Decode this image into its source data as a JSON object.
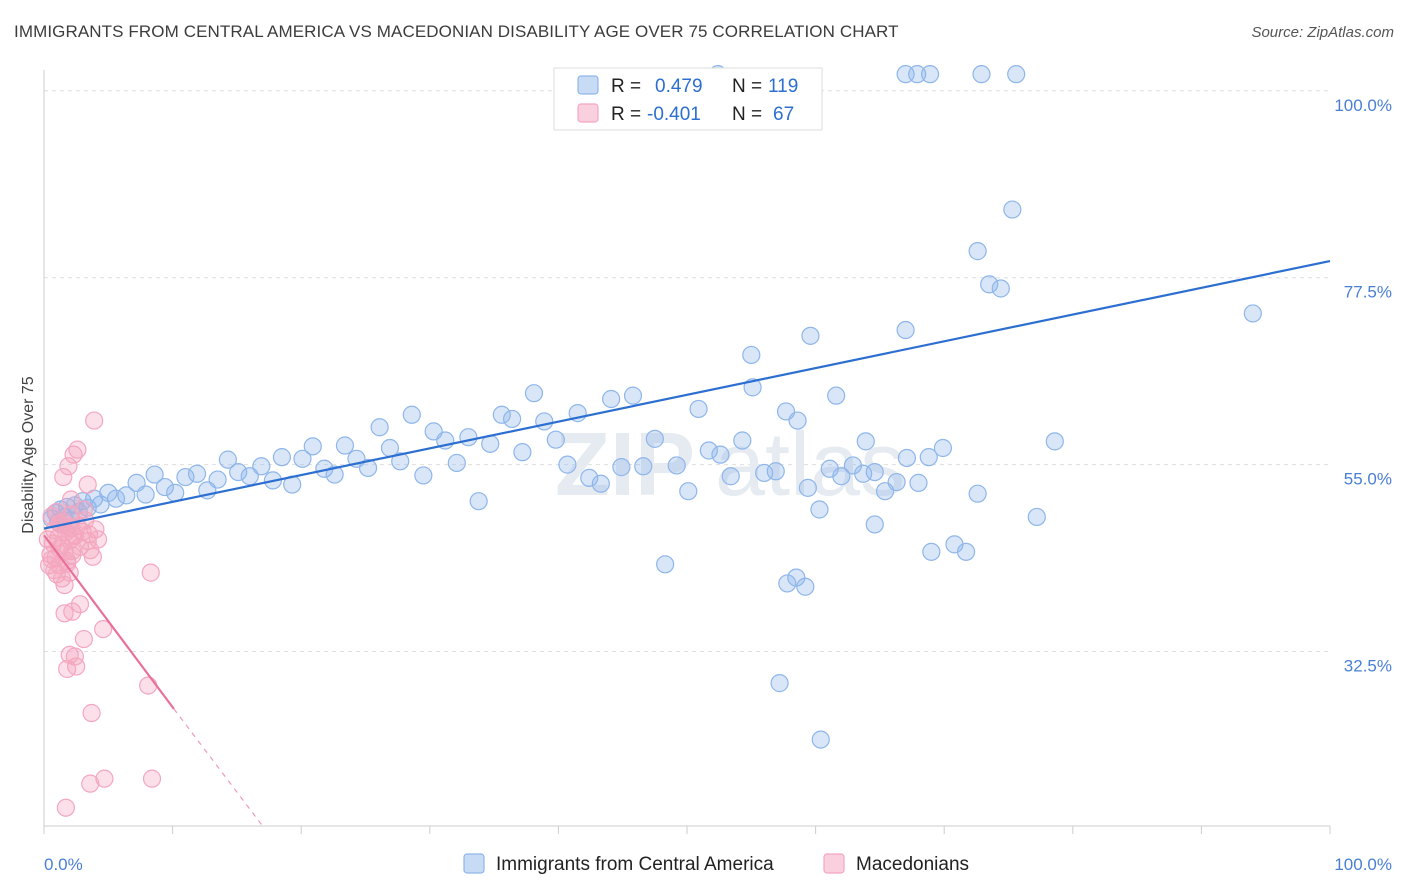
{
  "header": {
    "title": "IMMIGRANTS FROM CENTRAL AMERICA VS MACEDONIAN DISABILITY AGE OVER 75 CORRELATION CHART",
    "source": "Source: ZipAtlas.com"
  },
  "watermark": {
    "part1": "ZIP",
    "part2": "atlas"
  },
  "legend_top": {
    "rows": [
      {
        "r_label": "R =",
        "r_value": "0.479",
        "n_label": "N =",
        "n_value": "119",
        "color": "#8fb6ea"
      },
      {
        "r_label": "R =",
        "r_value": "-0.401",
        "n_label": "N =",
        "n_value": "67",
        "color": "#f4a7bf"
      }
    ]
  },
  "legend_bottom": {
    "items": [
      {
        "label": "Immigrants from Central America",
        "color": "#8fb6ea"
      },
      {
        "label": "Macedonians",
        "color": "#f4a7bf"
      }
    ]
  },
  "chart_data": {
    "type": "scatter",
    "title": "IMMIGRANTS FROM CENTRAL AMERICA VS MACEDONIAN DISABILITY AGE OVER 75 CORRELATION CHART",
    "xlabel": "",
    "ylabel": "Disability Age Over 75",
    "xlim": [
      0,
      100
    ],
    "ylim": [
      11.5,
      102.5
    ],
    "x_tick_labels": [
      "0.0%",
      "100.0%"
    ],
    "y_ticks": [
      32.5,
      55.0,
      77.5,
      100.0
    ],
    "y_tick_labels": [
      "32.5%",
      "55.0%",
      "77.5%",
      "100.0%"
    ],
    "grid": true,
    "legend_position": "top-center",
    "series": [
      {
        "name": "Immigrants from Central America",
        "color": "#8fb6ea",
        "line_color": "#2c6fd1",
        "trend": {
          "x": [
            0,
            100
          ],
          "y": [
            47.3,
            79.5
          ]
        },
        "points": [
          [
            0.6,
            48.5
          ],
          [
            0.9,
            49.2
          ],
          [
            1.1,
            48.1
          ],
          [
            1.3,
            49.6
          ],
          [
            1.6,
            48.7
          ],
          [
            1.8,
            49.9
          ],
          [
            2.1,
            48.3
          ],
          [
            2.4,
            50.1
          ],
          [
            2.7,
            49.3
          ],
          [
            3.0,
            50.6
          ],
          [
            3.4,
            49.8
          ],
          [
            3.9,
            50.9
          ],
          [
            4.4,
            50.2
          ],
          [
            5.0,
            51.6
          ],
          [
            5.6,
            50.9
          ],
          [
            6.4,
            51.3
          ],
          [
            7.2,
            52.8
          ],
          [
            7.9,
            51.4
          ],
          [
            8.6,
            53.8
          ],
          [
            9.4,
            52.3
          ],
          [
            10.2,
            51.6
          ],
          [
            11.0,
            53.5
          ],
          [
            11.9,
            53.9
          ],
          [
            12.7,
            51.9
          ],
          [
            13.5,
            53.2
          ],
          [
            14.3,
            55.6
          ],
          [
            15.1,
            54.1
          ],
          [
            16.0,
            53.6
          ],
          [
            16.9,
            54.8
          ],
          [
            17.8,
            53.1
          ],
          [
            18.5,
            55.9
          ],
          [
            19.3,
            52.6
          ],
          [
            20.1,
            55.7
          ],
          [
            20.9,
            57.2
          ],
          [
            21.8,
            54.5
          ],
          [
            22.6,
            53.8
          ],
          [
            23.4,
            57.3
          ],
          [
            24.3,
            55.7
          ],
          [
            25.2,
            54.6
          ],
          [
            26.1,
            59.5
          ],
          [
            26.9,
            57.0
          ],
          [
            27.7,
            55.4
          ],
          [
            28.6,
            61.0
          ],
          [
            29.5,
            53.7
          ],
          [
            30.3,
            59.0
          ],
          [
            31.2,
            57.9
          ],
          [
            32.1,
            55.2
          ],
          [
            33.0,
            58.3
          ],
          [
            33.8,
            50.6
          ],
          [
            34.7,
            57.5
          ],
          [
            35.6,
            61.0
          ],
          [
            36.4,
            60.5
          ],
          [
            37.2,
            56.5
          ],
          [
            38.1,
            63.6
          ],
          [
            38.9,
            60.2
          ],
          [
            39.8,
            58.0
          ],
          [
            40.7,
            55.0
          ],
          [
            41.5,
            61.2
          ],
          [
            42.4,
            53.4
          ],
          [
            43.3,
            52.7
          ],
          [
            44.1,
            62.9
          ],
          [
            44.9,
            54.7
          ],
          [
            45.8,
            63.3
          ],
          [
            46.6,
            54.8
          ],
          [
            47.5,
            58.1
          ],
          [
            48.3,
            43.0
          ],
          [
            49.2,
            54.9
          ],
          [
            50.1,
            51.8
          ],
          [
            50.9,
            61.7
          ],
          [
            51.7,
            56.7
          ],
          [
            52.6,
            56.2
          ],
          [
            53.4,
            53.6
          ],
          [
            54.3,
            57.9
          ],
          [
            55.1,
            64.3
          ],
          [
            56.0,
            54.0
          ],
          [
            56.9,
            54.2
          ],
          [
            57.7,
            61.4
          ],
          [
            58.6,
            60.3
          ],
          [
            59.4,
            52.2
          ],
          [
            60.3,
            49.6
          ],
          [
            61.1,
            54.5
          ],
          [
            62.0,
            53.6
          ],
          [
            62.9,
            54.9
          ],
          [
            63.7,
            53.9
          ],
          [
            64.6,
            54.1
          ],
          [
            65.4,
            51.8
          ],
          [
            66.3,
            52.9
          ],
          [
            67.1,
            55.8
          ],
          [
            68.0,
            52.8
          ],
          [
            68.8,
            55.9
          ],
          [
            55.0,
            68.2
          ],
          [
            59.6,
            70.5
          ],
          [
            63.9,
            57.8
          ],
          [
            64.6,
            47.8
          ],
          [
            67.0,
            71.2
          ],
          [
            69.0,
            44.5
          ],
          [
            69.9,
            57.0
          ],
          [
            70.8,
            45.4
          ],
          [
            71.7,
            44.5
          ],
          [
            72.6,
            51.5
          ],
          [
            73.5,
            76.7
          ],
          [
            74.4,
            76.2
          ],
          [
            72.6,
            80.7
          ],
          [
            75.3,
            85.7
          ],
          [
            59.2,
            40.3
          ],
          [
            58.5,
            41.4
          ],
          [
            57.8,
            40.7
          ],
          [
            60.4,
            21.9
          ],
          [
            57.2,
            28.7
          ],
          [
            61.6,
            63.3
          ],
          [
            78.6,
            57.8
          ],
          [
            77.2,
            48.7
          ],
          [
            94.0,
            73.2
          ],
          [
            67.0,
            102.0
          ],
          [
            67.9,
            102.0
          ],
          [
            68.9,
            102.0
          ],
          [
            72.9,
            102.0
          ],
          [
            75.6,
            102.0
          ],
          [
            52.4,
            102.0
          ]
        ]
      },
      {
        "name": "Macedonians",
        "color": "#f4a7bf",
        "line_color": "#e8709a",
        "trend": {
          "x": [
            0,
            10.1
          ],
          "y": [
            46.5,
            25.6
          ]
        },
        "trend_dashed": {
          "x": [
            10.1,
            17.0
          ],
          "y": [
            25.6,
            11.5
          ]
        },
        "points": [
          [
            0.3,
            46.0
          ],
          [
            0.5,
            44.2
          ],
          [
            0.6,
            48.8
          ],
          [
            0.7,
            45.5
          ],
          [
            0.8,
            47.1
          ],
          [
            0.9,
            43.8
          ],
          [
            1.0,
            49.3
          ],
          [
            1.1,
            46.2
          ],
          [
            1.2,
            44.9
          ],
          [
            1.3,
            47.8
          ],
          [
            1.4,
            45.3
          ],
          [
            1.5,
            48.1
          ],
          [
            1.6,
            44.5
          ],
          [
            1.7,
            46.9
          ],
          [
            1.8,
            43.4
          ],
          [
            1.9,
            47.5
          ],
          [
            2.0,
            45.9
          ],
          [
            2.1,
            49.0
          ],
          [
            2.2,
            44.1
          ],
          [
            2.3,
            46.5
          ],
          [
            0.4,
            42.9
          ],
          [
            0.6,
            43.6
          ],
          [
            0.8,
            42.3
          ],
          [
            1.0,
            41.8
          ],
          [
            1.2,
            42.9
          ],
          [
            1.4,
            41.3
          ],
          [
            1.6,
            40.5
          ],
          [
            1.8,
            43.1
          ],
          [
            2.0,
            42.0
          ],
          [
            2.2,
            44.6
          ],
          [
            2.4,
            46.4
          ],
          [
            2.6,
            47.6
          ],
          [
            2.8,
            45.1
          ],
          [
            3.0,
            46.9
          ],
          [
            3.2,
            48.3
          ],
          [
            3.4,
            45.8
          ],
          [
            3.6,
            44.7
          ],
          [
            3.8,
            43.9
          ],
          [
            4.0,
            47.2
          ],
          [
            4.2,
            46.0
          ],
          [
            1.5,
            53.5
          ],
          [
            1.9,
            54.8
          ],
          [
            2.1,
            50.8
          ],
          [
            2.3,
            56.2
          ],
          [
            2.6,
            56.8
          ],
          [
            3.4,
            52.6
          ],
          [
            3.9,
            60.3
          ],
          [
            3.1,
            49.6
          ],
          [
            1.6,
            37.1
          ],
          [
            2.2,
            37.3
          ],
          [
            2.8,
            38.2
          ],
          [
            4.6,
            35.2
          ],
          [
            2.0,
            32.1
          ],
          [
            2.4,
            31.9
          ],
          [
            3.1,
            34.0
          ],
          [
            1.8,
            30.4
          ],
          [
            2.5,
            30.7
          ],
          [
            8.3,
            42.0
          ],
          [
            8.1,
            28.4
          ],
          [
            3.7,
            25.1
          ],
          [
            4.7,
            17.2
          ],
          [
            3.6,
            16.6
          ],
          [
            8.4,
            17.2
          ],
          [
            1.7,
            13.7
          ],
          [
            2.1,
            47.3
          ],
          [
            3.5,
            46.6
          ],
          [
            1.2,
            47.9
          ]
        ]
      }
    ]
  }
}
